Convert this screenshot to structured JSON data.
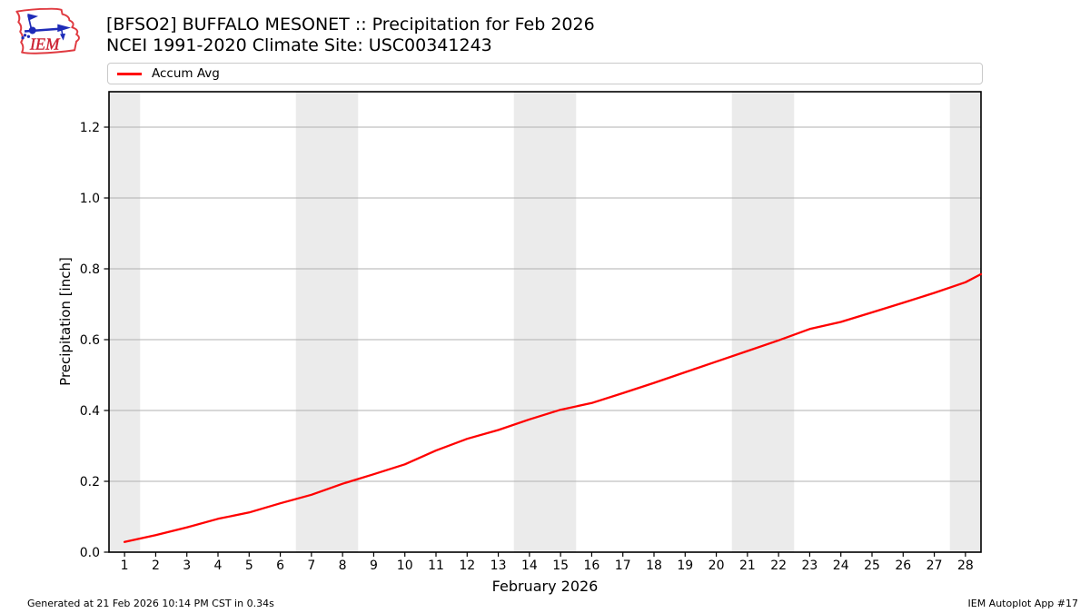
{
  "header": {
    "title_line1": "[BFSO2] BUFFALO MESONET :: Precipitation for Feb 2026",
    "title_line2": "NCEI 1991-2020 Climate Site: USC00341243",
    "logo_text": "IEM"
  },
  "legend": {
    "items": [
      {
        "label": "Accum Avg",
        "color": "#ff0000"
      }
    ]
  },
  "footer": {
    "left": "Generated at 21 Feb 2026 10:14 PM CST in 0.34s",
    "right": "IEM Autoplot App #17"
  },
  "chart_data": {
    "type": "line",
    "title": "[BFSO2] BUFFALO MESONET :: Precipitation for Feb 2026",
    "subtitle": "NCEI 1991-2020 Climate Site: USC00341243",
    "xlabel": "February 2026",
    "ylabel": "Precipitation [inch]",
    "xlim": [
      0.5,
      28.5
    ],
    "ylim": [
      0,
      1.3
    ],
    "xticks": [
      1,
      2,
      3,
      4,
      5,
      6,
      7,
      8,
      9,
      10,
      11,
      12,
      13,
      14,
      15,
      16,
      17,
      18,
      19,
      20,
      21,
      22,
      23,
      24,
      25,
      26,
      27,
      28
    ],
    "yticks": [
      0,
      0.2,
      0.4,
      0.6,
      0.8,
      1.0,
      1.2
    ],
    "ytick_labels": [
      "0.0",
      "0.2",
      "0.4",
      "0.6",
      "0.8",
      "1.0",
      "1.2"
    ],
    "grid": "horizontal",
    "legend_position": "top",
    "weekend_shading_days": [
      [
        0.5,
        1.5
      ],
      [
        6.5,
        8.5
      ],
      [
        13.5,
        15.5
      ],
      [
        20.5,
        22.5
      ],
      [
        27.5,
        28.5
      ]
    ],
    "series": [
      {
        "name": "Accum Avg",
        "color": "#ff0000",
        "x": [
          1,
          2,
          3,
          4,
          5,
          6,
          7,
          8,
          9,
          10,
          11,
          12,
          13,
          14,
          15,
          16,
          17,
          18,
          19,
          20,
          21,
          22,
          23,
          24,
          25,
          26,
          27,
          28,
          28.5
        ],
        "values": [
          0.029,
          0.048,
          0.07,
          0.094,
          0.112,
          0.138,
          0.162,
          0.193,
          0.22,
          0.248,
          0.287,
          0.32,
          0.345,
          0.375,
          0.402,
          0.421,
          0.449,
          0.478,
          0.508,
          0.538,
          0.568,
          0.598,
          0.63,
          0.65,
          0.677,
          0.704,
          0.732,
          0.762,
          0.785
        ]
      }
    ],
    "colors": {
      "band": "#ebebeb",
      "grid": "#b2b2b2",
      "axis": "#000000",
      "line": "#ff0000"
    }
  }
}
